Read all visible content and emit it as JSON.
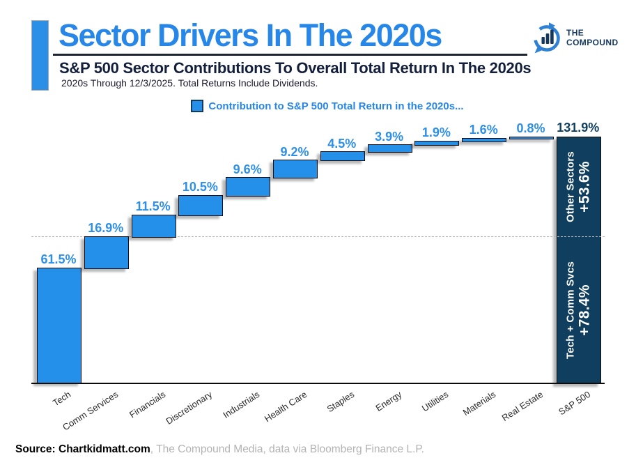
{
  "header": {
    "title": "Sector Drivers In The 2020s",
    "subtitle": "S&P 500 Sector Contributions To Overall Total Return In The 2020s",
    "caption": "2020s Through 12/3/2025. Total Returns Include Dividends.",
    "logo": {
      "line1": "THE",
      "line2": "COMPOUND"
    }
  },
  "legend": {
    "label": "Contribution to S&P 500 Total Return in the 2020s..."
  },
  "chart_data": {
    "type": "bar",
    "subtype": "waterfall",
    "title": "Contribution to S&P 500 Total Return in the 2020s...",
    "categories": [
      "Tech",
      "Comm Services",
      "Financials",
      "Discretionary",
      "Industrials",
      "Health Care",
      "Staples",
      "Energy",
      "Utilities",
      "Materials",
      "Real Estate",
      "S&P 500"
    ],
    "values": [
      61.5,
      16.9,
      11.5,
      10.5,
      9.6,
      9.2,
      4.5,
      3.9,
      1.9,
      1.6,
      0.8
    ],
    "value_labels": [
      "61.5%",
      "16.9%",
      "11.5%",
      "10.5%",
      "9.6%",
      "9.2%",
      "4.5%",
      "3.9%",
      "1.9%",
      "1.6%",
      "0.8%"
    ],
    "total_value": 131.9,
    "total_label": "131.9%",
    "total_category": "S&P 500",
    "total_bar_sections": [
      {
        "position": "bottom",
        "label": "Tech + Comm Svcs",
        "value": 78.4,
        "value_label": "+78.4%"
      },
      {
        "position": "top",
        "label": "Other Sectors",
        "value": 53.6,
        "value_label": "+53.6%"
      }
    ],
    "reference_line_at": 78.4,
    "ylim": [
      0,
      131.9
    ],
    "grid": "single dashed horizontal reference line at 78.4%",
    "legend_position": "top-center",
    "colors": {
      "bar": "#2590EA",
      "bar_border": "#0b0b0b",
      "total_bar": "#0F3E5E",
      "value_label": "#2E8FE6",
      "total_value_label": "#0F3E5E",
      "accent_blue": "#2787E8",
      "dark_navy_text": "#131F3B",
      "source_gray": "#b3b3b3"
    }
  },
  "footer": {
    "source_bold": "Source: Chartkidmatt.com",
    "source_rest": ", The Compound Media, data via Bloomberg Finance L.P."
  }
}
